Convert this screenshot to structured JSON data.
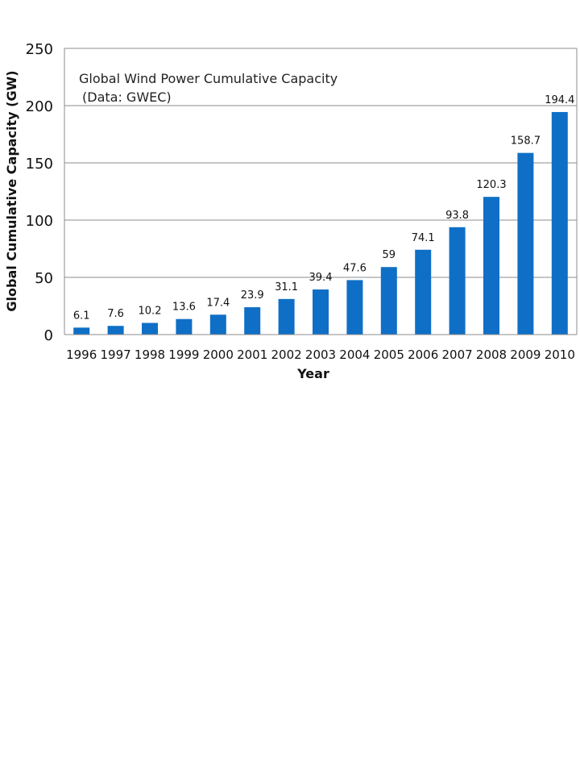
{
  "chart_data": {
    "type": "bar",
    "annotation": [
      "Global Wind Power Cumulative Capacity",
      "(Data: GWEC)"
    ],
    "xlabel": "Year",
    "ylabel": "Global  Cumulative  Capacity  (GW)",
    "categories": [
      "1996",
      "1997",
      "1998",
      "1999",
      "2000",
      "2001",
      "2002",
      "2003",
      "2004",
      "2005",
      "2006",
      "2007",
      "2008",
      "2009",
      "2010"
    ],
    "values": [
      6.1,
      7.6,
      10.2,
      13.6,
      17.4,
      23.9,
      31.1,
      39.4,
      47.6,
      59,
      74.1,
      93.8,
      120.3,
      158.7,
      194.4
    ],
    "value_labels": [
      "6.1",
      "7.6",
      "10.2",
      "13.6",
      "17.4",
      "23.9",
      "31.1",
      "39.4",
      "47.6",
      "59",
      "74.1",
      "93.8",
      "120.3",
      "158.7",
      "194.4"
    ],
    "ylim": [
      0,
      250
    ],
    "yticks": [
      0,
      50,
      100,
      150,
      200,
      250
    ],
    "grid": true,
    "bar_color": "#0F6FC6"
  }
}
